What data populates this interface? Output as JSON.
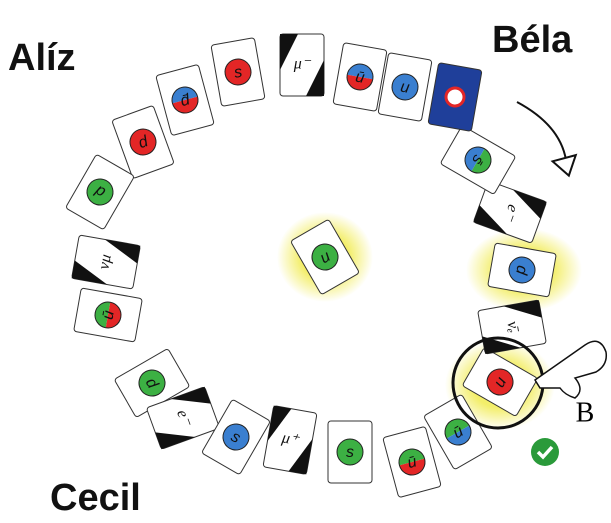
{
  "players": {
    "top_left": "Alíz",
    "top_right": "Béla",
    "bottom_left": "Cecil"
  },
  "cards": [
    {
      "label": "s"
    },
    {
      "label": "d̄"
    },
    {
      "label": "d"
    },
    {
      "label": "d"
    },
    {
      "label": "νμ"
    },
    {
      "label": "ū"
    },
    {
      "label": "d"
    },
    {
      "label": "e⁻"
    },
    {
      "label": "s"
    },
    {
      "label": "μ⁺"
    },
    {
      "label": "s"
    },
    {
      "label": "ū"
    },
    {
      "label": "ū"
    },
    {
      "label": "u"
    },
    {
      "label": "ν̄ₑ"
    },
    {
      "label": "d"
    },
    {
      "label": "e⁻"
    },
    {
      "label": "s̄"
    },
    {
      "label": "u"
    },
    {
      "label": "ū"
    },
    {
      "label": "μ⁻"
    }
  ],
  "center_card": {
    "label": "u"
  },
  "hand_label": "B"
}
